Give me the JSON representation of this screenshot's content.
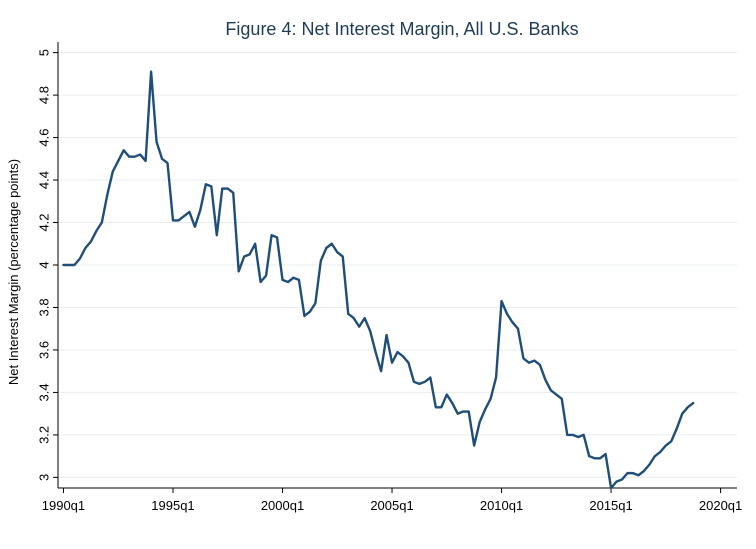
{
  "chart_data": {
    "type": "line",
    "title": "Figure 4: Net Interest Margin, All U.S. Banks",
    "xlabel": "",
    "ylabel": "Net Interest Margin (percentage points)",
    "x_tick_labels": [
      "1990q1",
      "1995q1",
      "2000q1",
      "2005q1",
      "2010q1",
      "2015q1",
      "2020q1"
    ],
    "x_ticks": [
      1990.0,
      1995.0,
      2000.0,
      2005.0,
      2010.0,
      2015.0,
      2020.0
    ],
    "y_ticks": [
      3,
      3.2,
      3.4,
      3.6,
      3.8,
      4,
      4.2,
      4.4,
      4.6,
      4.8,
      5
    ],
    "y_tick_labels": [
      "3",
      "3.2",
      "3.4",
      "3.6",
      "3.8",
      "4",
      "4.2",
      "4.4",
      "4.6",
      "4.8",
      "5"
    ],
    "xlim": [
      1989.75,
      2020.75
    ],
    "ylim": [
      2.95,
      5.05
    ],
    "grid": true,
    "line_color": "#1f4e79",
    "series": [
      {
        "x": [
          1990.0,
          1990.25,
          1990.5,
          1990.75,
          1991.0,
          1991.25,
          1991.5,
          1991.75,
          1992.0,
          1992.25,
          1992.5,
          1992.75,
          1993.0,
          1993.25,
          1993.5,
          1993.75,
          1994.0,
          1994.25,
          1994.5,
          1994.75,
          1995.0,
          1995.25,
          1995.5,
          1995.75,
          1996.0,
          1996.25,
          1996.5,
          1996.75,
          1997.0,
          1997.25,
          1997.5,
          1997.75,
          1998.0,
          1998.25,
          1998.5,
          1998.75,
          1999.0,
          1999.25,
          1999.5,
          1999.75,
          2000.0,
          2000.25,
          2000.5,
          2000.75,
          2001.0,
          2001.25,
          2001.5,
          2001.75,
          2002.0,
          2002.25,
          2002.5,
          2002.75,
          2003.0,
          2003.25,
          2003.5,
          2003.75,
          2004.0,
          2004.25,
          2004.5,
          2004.75,
          2005.0,
          2005.25,
          2005.5,
          2005.75,
          2006.0,
          2006.25,
          2006.5,
          2006.75,
          2007.0,
          2007.25,
          2007.5,
          2007.75,
          2008.0,
          2008.25,
          2008.5,
          2008.75,
          2009.0,
          2009.25,
          2009.5,
          2009.75,
          2010.0,
          2010.25,
          2010.5,
          2010.75,
          2011.0,
          2011.25,
          2011.5,
          2011.75,
          2012.0,
          2012.25,
          2012.5,
          2012.75,
          2013.0,
          2013.25,
          2013.5,
          2013.75,
          2014.0,
          2014.25,
          2014.5,
          2014.75,
          2015.0,
          2015.25,
          2015.5,
          2015.75,
          2016.0,
          2016.25,
          2016.5,
          2016.75,
          2017.0,
          2017.25,
          2017.5,
          2017.75,
          2018.0,
          2018.25,
          2018.5,
          2018.75
        ],
        "values": [
          4.0,
          4.0,
          4.0,
          4.03,
          4.08,
          4.11,
          4.16,
          4.2,
          4.33,
          4.44,
          4.49,
          4.54,
          4.51,
          4.51,
          4.52,
          4.49,
          4.91,
          4.58,
          4.5,
          4.48,
          4.21,
          4.21,
          4.23,
          4.25,
          4.18,
          4.26,
          4.38,
          4.37,
          4.14,
          4.36,
          4.36,
          4.34,
          3.97,
          4.04,
          4.05,
          4.1,
          3.92,
          3.95,
          4.14,
          4.13,
          3.93,
          3.92,
          3.94,
          3.93,
          3.76,
          3.78,
          3.82,
          4.02,
          4.08,
          4.1,
          4.06,
          4.04,
          3.77,
          3.75,
          3.71,
          3.75,
          3.69,
          3.59,
          3.5,
          3.67,
          3.54,
          3.59,
          3.57,
          3.54,
          3.45,
          3.44,
          3.45,
          3.47,
          3.33,
          3.33,
          3.39,
          3.35,
          3.3,
          3.31,
          3.31,
          3.15,
          3.26,
          3.32,
          3.37,
          3.47,
          3.83,
          3.77,
          3.73,
          3.7,
          3.56,
          3.54,
          3.55,
          3.53,
          3.46,
          3.41,
          3.39,
          3.37,
          3.2,
          3.2,
          3.19,
          3.2,
          3.1,
          3.09,
          3.09,
          3.11,
          2.95,
          2.98,
          2.99,
          3.02,
          3.02,
          3.01,
          3.03,
          3.06,
          3.1,
          3.12,
          3.15,
          3.17,
          3.23,
          3.3,
          3.33,
          3.35
        ]
      }
    ]
  }
}
